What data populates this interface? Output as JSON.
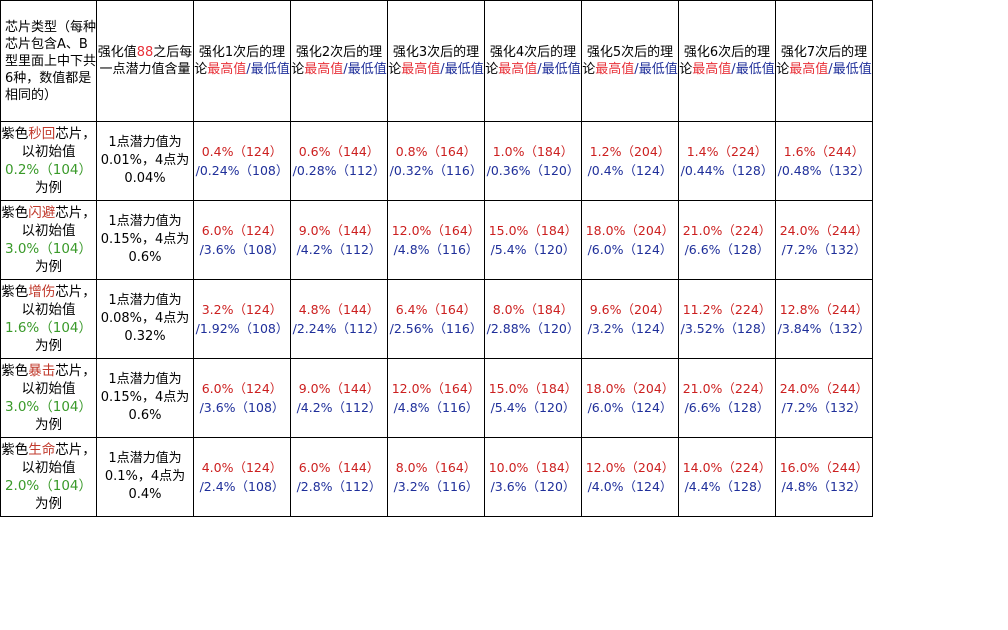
{
  "header": {
    "col0": "芯片类型（每种芯片包含A、B型里面上中下共6种，数值都是相同的）",
    "col1_pre": "强化值",
    "col1_num": "88",
    "col1_post": "之后每一点潜力值含量",
    "levels": [
      {
        "pre": "强化1次后的理论",
        "max": "最高值",
        "sep": "/",
        "min": "最低",
        "tail": "值"
      },
      {
        "pre": "强化2次后的理论",
        "max": "最高值",
        "sep": "/",
        "min": "最低",
        "tail": "值"
      },
      {
        "pre": "强化3次后的理论",
        "max": "最高值",
        "sep": "/",
        "min": "最低",
        "tail": "值"
      },
      {
        "pre": "强化4次后的理论",
        "max": "最高值",
        "sep": "/",
        "min": "最低",
        "tail": "值"
      },
      {
        "pre": "强化5次后的理论",
        "max": "最高值",
        "sep": "/",
        "min": "最低",
        "tail": "值"
      },
      {
        "pre": "强化6次后的理论",
        "max": "最高值",
        "sep": "/",
        "min": "最低",
        "tail": "值"
      },
      {
        "pre": "强化7次后的理论",
        "max": "最高值",
        "sep": "/",
        "min": "最低",
        "tail": "值"
      }
    ]
  },
  "rows": [
    {
      "name_pre": "紫色",
      "name_hl": "秒回",
      "name_post": "芯片，以初始值",
      "init": "0.2%（104）",
      "suffix": "为例",
      "potential": "1点潜力值为0.01%，4点为0.04%",
      "values": [
        {
          "max": "0.4%（124）",
          "min": "/0.24%（108）"
        },
        {
          "max": "0.6%（144）",
          "min": "/0.28%（112）"
        },
        {
          "max": "0.8%（164）",
          "min": "/0.32%（116）"
        },
        {
          "max": "1.0%（184）",
          "min": "/0.36%（120）"
        },
        {
          "max": "1.2%（204）",
          "min": "/0.4%（124）"
        },
        {
          "max": "1.4%（224）",
          "min": "/0.44%（128）"
        },
        {
          "max": "1.6%（244）",
          "min": "/0.48%（132）"
        }
      ]
    },
    {
      "name_pre": "紫色",
      "name_hl": "闪避",
      "name_post": "芯片，以初始值",
      "init": "3.0%（104）",
      "suffix": "为例",
      "potential": "1点潜力值为0.15%，4点为0.6%",
      "values": [
        {
          "max": "6.0%（124）",
          "min": "/3.6%（108）"
        },
        {
          "max": "9.0%（144）",
          "min": "/4.2%（112）"
        },
        {
          "max": "12.0%（164）",
          "min": "/4.8%（116）"
        },
        {
          "max": "15.0%（184）",
          "min": "/5.4%（120）"
        },
        {
          "max": "18.0%（204）",
          "min": "/6.0%（124）"
        },
        {
          "max": "21.0%（224）",
          "min": "/6.6%（128）"
        },
        {
          "max": "24.0%（244）",
          "min": "/7.2%（132）"
        }
      ]
    },
    {
      "name_pre": "紫色",
      "name_hl": "增伤",
      "name_post": "芯片，以初始值",
      "init": "1.6%（104）",
      "suffix": "为例",
      "potential": "1点潜力值为0.08%，4点为0.32%",
      "values": [
        {
          "max": "3.2%（124）",
          "min": "/1.92%（108）"
        },
        {
          "max": "4.8%（144）",
          "min": "/2.24%（112）"
        },
        {
          "max": "6.4%（164）",
          "min": "/2.56%（116）"
        },
        {
          "max": "8.0%（184）",
          "min": "/2.88%（120）"
        },
        {
          "max": "9.6%（204）",
          "min": "/3.2%（124）"
        },
        {
          "max": "11.2%（224）",
          "min": "/3.52%（128）"
        },
        {
          "max": "12.8%（244）",
          "min": "/3.84%（132）"
        }
      ]
    },
    {
      "name_pre": "紫色",
      "name_hl": "暴击",
      "name_post": "芯片，以初始值",
      "init": "3.0%（104）",
      "suffix": "为例",
      "potential": "1点潜力值为0.15%，4点为0.6%",
      "values": [
        {
          "max": "6.0%（124）",
          "min": "/3.6%（108）"
        },
        {
          "max": "9.0%（144）",
          "min": "/4.2%（112）"
        },
        {
          "max": "12.0%（164）",
          "min": "/4.8%（116）"
        },
        {
          "max": "15.0%（184）",
          "min": "/5.4%（120）"
        },
        {
          "max": "18.0%（204）",
          "min": "/6.0%（124）"
        },
        {
          "max": "21.0%（224）",
          "min": "/6.6%（128）"
        },
        {
          "max": "24.0%（244）",
          "min": "/7.2%（132）"
        }
      ]
    },
    {
      "name_pre": "紫色",
      "name_hl": "生命",
      "name_post": "芯片，以初始值",
      "init": "2.0%（104）",
      "suffix": "为例",
      "potential": "1点潜力值为0.1%，4点为0.4%",
      "values": [
        {
          "max": "4.0%（124）",
          "min": "/2.4%（108）"
        },
        {
          "max": "6.0%（144）",
          "min": "/2.8%（112）"
        },
        {
          "max": "8.0%（164）",
          "min": "/3.2%（116）"
        },
        {
          "max": "10.0%（184）",
          "min": "/3.6%（120）"
        },
        {
          "max": "12.0%（204）",
          "min": "/4.0%（124）"
        },
        {
          "max": "14.0%（224）",
          "min": "/4.4%（128）"
        },
        {
          "max": "16.0%（244）",
          "min": "/4.8%（132）"
        }
      ]
    }
  ],
  "colors": {
    "max_value": "#cc1f1f",
    "min_value": "#1f2f9a",
    "initial_value": "#3a9a2a",
    "chip_highlight": "#c0392b",
    "header_88": "#e8323a"
  }
}
